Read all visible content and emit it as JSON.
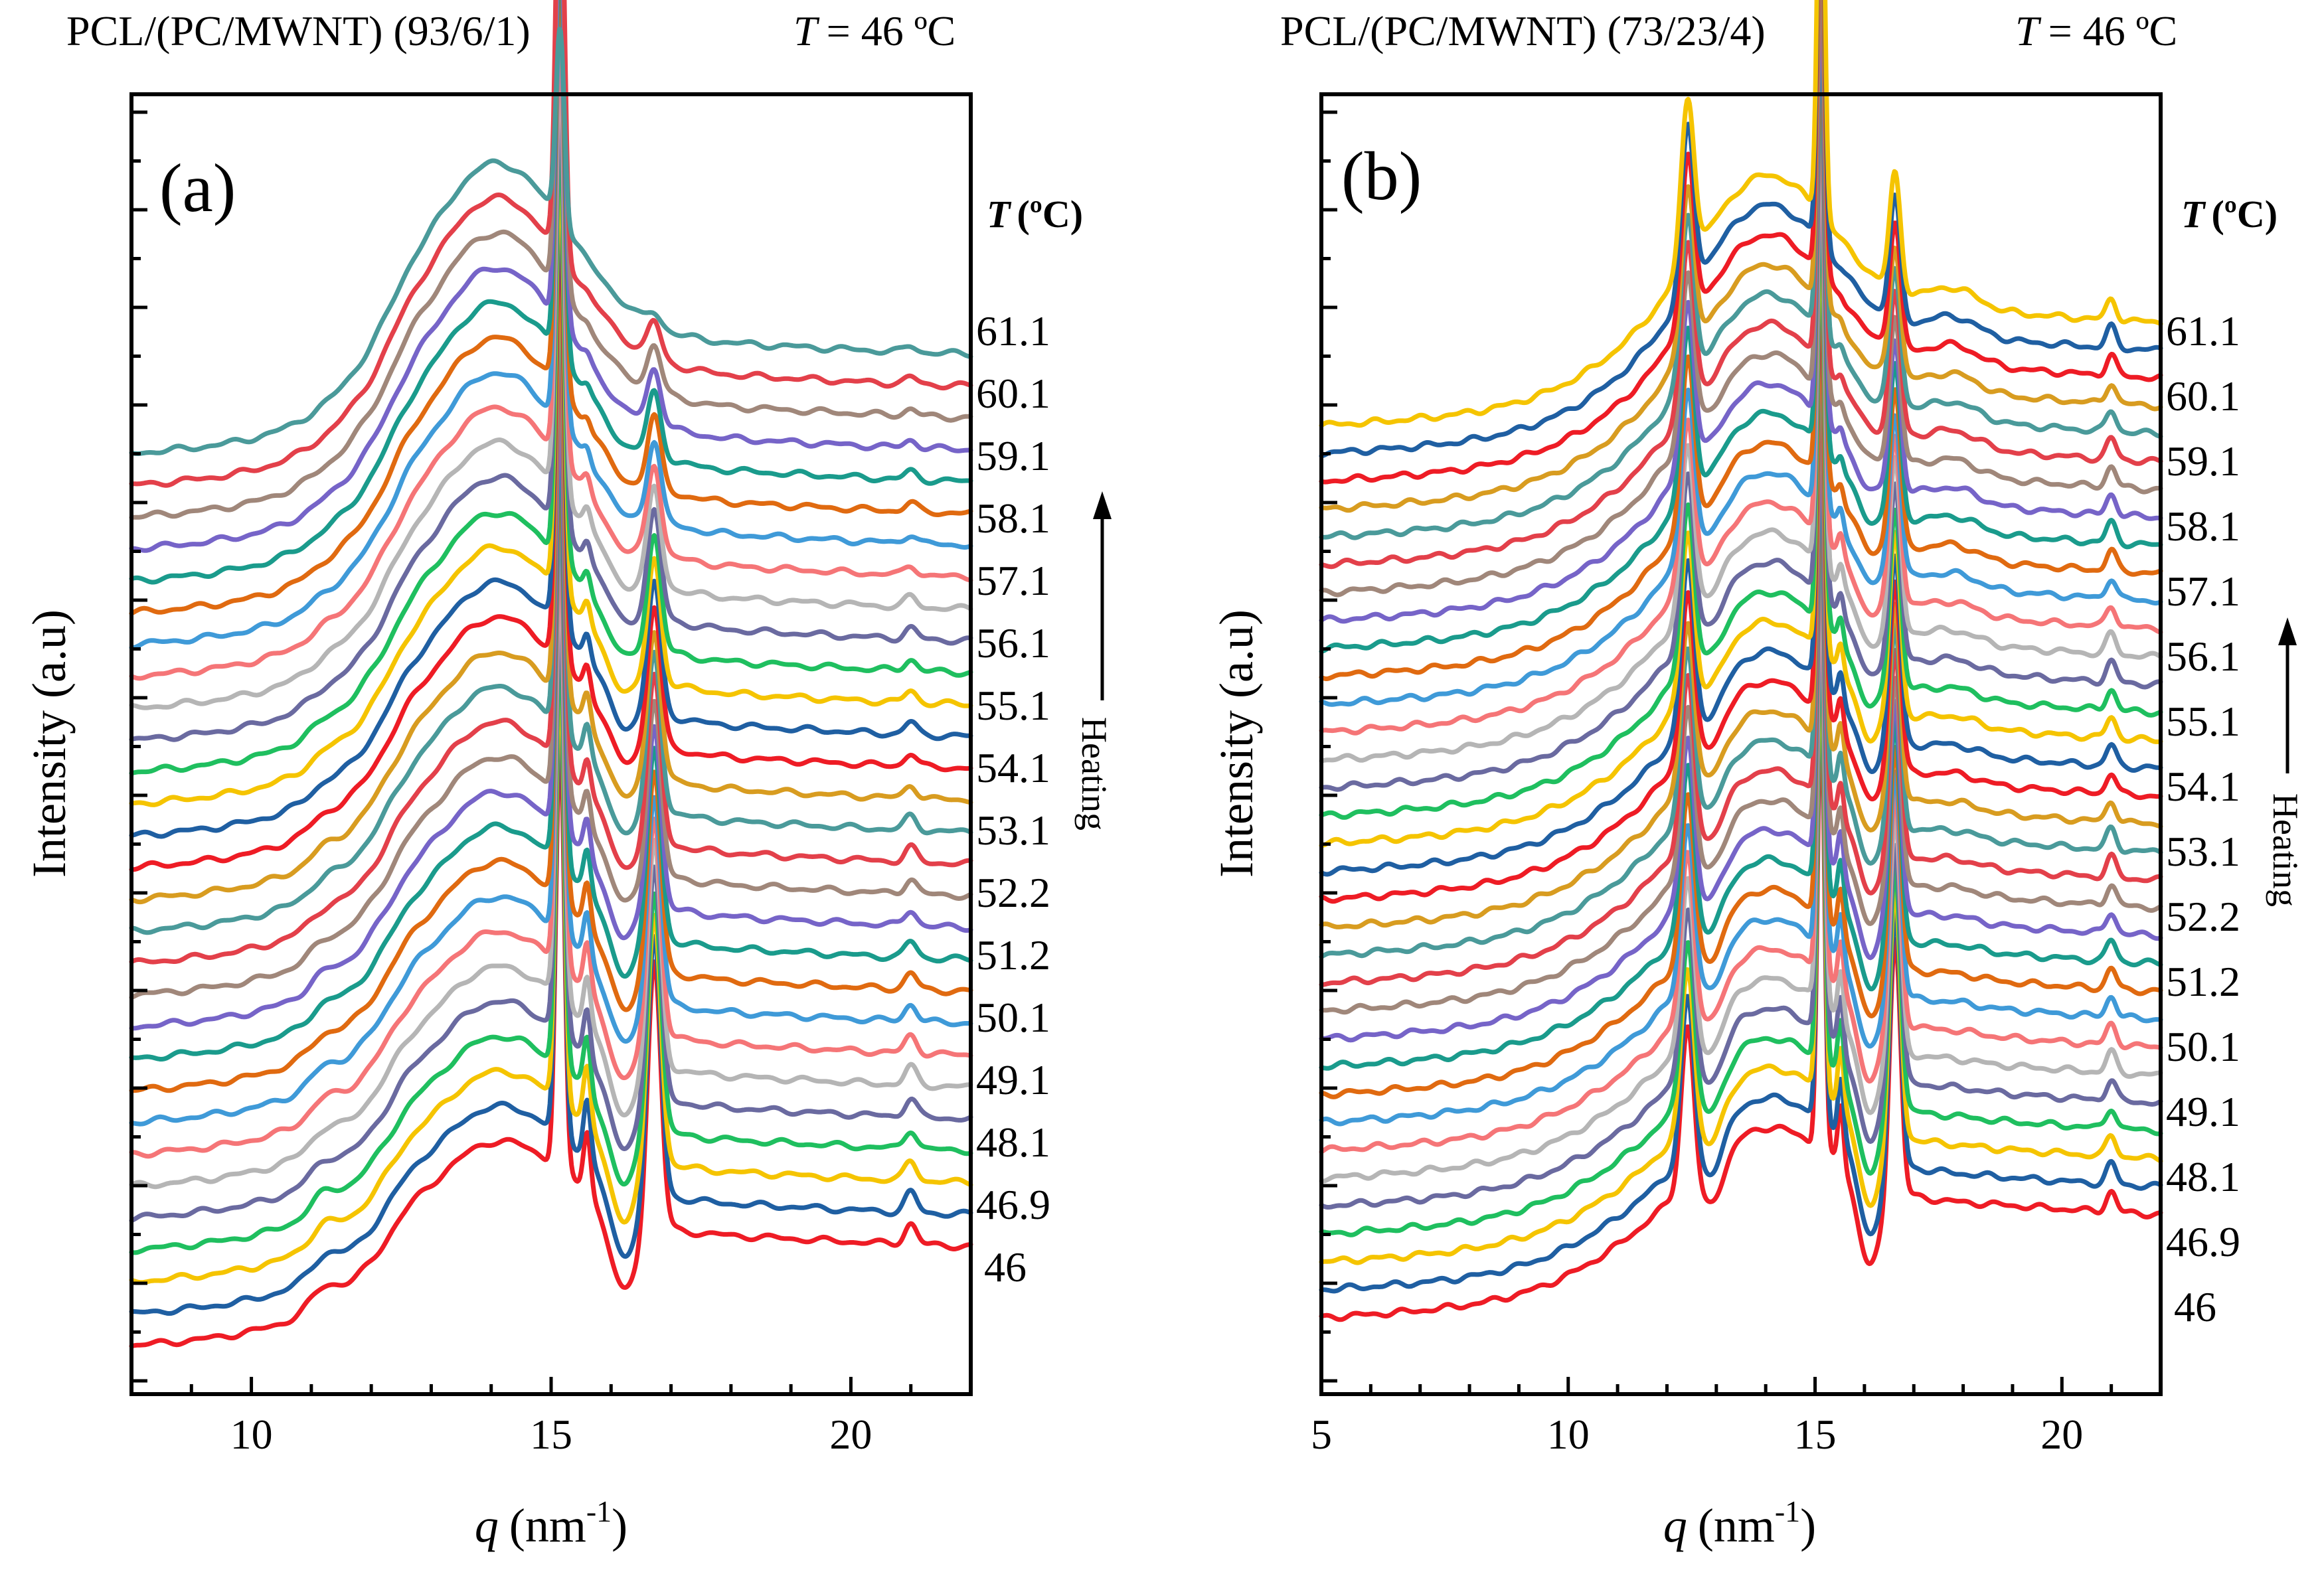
{
  "chart_data": [
    {
      "panel": "(a)",
      "type": "line",
      "title_sample": "PCL/(PC/MWNT) (93/6/1)",
      "title_temperature_symbol": "T",
      "title_temperature_value": "= 46 ºC",
      "xlabel_symbol": "q",
      "xlabel_unit": "(nm",
      "xlabel_exponent": "-1",
      "xlabel_close": ")",
      "ylabel": "Intensity (a.u)",
      "xlim": [
        8,
        22
      ],
      "xticks": [
        10,
        15,
        20
      ],
      "xtick_labels": [
        "10",
        "15",
        "20"
      ],
      "legend_title_symbol": "T",
      "legend_title_unit": "(ºC)",
      "temperature_labels": [
        "61.1",
        "60.1",
        "59.1",
        "58.1",
        "57.1",
        "56.1",
        "55.1",
        "54.1",
        "53.1",
        "52.2",
        "51.2",
        "50.1",
        "49.1",
        "48.1",
        "46.9",
        "46"
      ],
      "arrow_label": "Heating",
      "curve_count": 29,
      "peaks_q": [
        11.2,
        12.6,
        14.0,
        15.15,
        15.6,
        16.7,
        21.0
      ]
    },
    {
      "panel": "(b)",
      "type": "line",
      "title_sample": "PCL/(PC/MWNT) (73/23/4)",
      "title_temperature_symbol": "T",
      "title_temperature_value": "= 46 ºC",
      "xlabel_symbol": "q",
      "xlabel_unit": "(nm",
      "xlabel_exponent": "-1",
      "xlabel_close": ")",
      "ylabel": "Intensity (a.u)",
      "xlim": [
        5,
        22
      ],
      "xticks": [
        5,
        10,
        15,
        20
      ],
      "xtick_labels": [
        "5",
        "10",
        "15",
        "20"
      ],
      "legend_title_symbol": "T",
      "legend_title_unit": "(ºC)",
      "temperature_labels": [
        "61.1",
        "60.1",
        "59.1",
        "58.1",
        "57.1",
        "56.1",
        "55.1",
        "54.1",
        "53.1",
        "52.2",
        "51.2",
        "50.1",
        "49.1",
        "48.1",
        "46.9",
        "46"
      ],
      "arrow_label": "Heating",
      "curve_count": 33,
      "peaks_q": [
        12.4,
        14.0,
        15.1,
        15.5,
        16.6,
        21.0
      ]
    }
  ],
  "series_colors": [
    "#ee1c25",
    "#1f5fa2",
    "#f5c400",
    "#1fbf5f",
    "#6a6aa0",
    "#b5b5b5",
    "#f57577",
    "#3f9ad8",
    "#e06a10",
    "#1a9b8c",
    "#7664c8",
    "#a0877a",
    "#e3404a",
    "#4a9a9a",
    "#d89c20"
  ]
}
